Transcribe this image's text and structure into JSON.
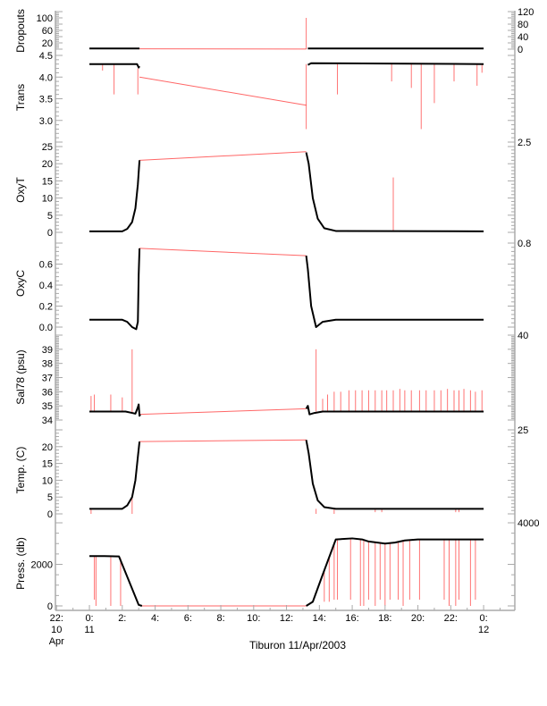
{
  "chart_data": {
    "type": "line",
    "title": "Tiburon 11/Apr/2003",
    "xlabel": "Tiburon 11/Apr/2003",
    "xlim": [
      -2.07,
      25.9
    ],
    "x_ticks": [
      {
        "value": -2,
        "lines": [
          "22:",
          "10",
          "Apr"
        ]
      },
      {
        "value": 0,
        "lines": [
          "0:",
          "11"
        ]
      },
      {
        "value": 2,
        "lines": [
          "2:"
        ]
      },
      {
        "value": 4,
        "lines": [
          "4:"
        ]
      },
      {
        "value": 6,
        "lines": [
          "6:"
        ]
      },
      {
        "value": 8,
        "lines": [
          "8:"
        ]
      },
      {
        "value": 10,
        "lines": [
          "10:"
        ]
      },
      {
        "value": 12,
        "lines": [
          "12:"
        ]
      },
      {
        "value": 14,
        "lines": [
          "14:"
        ]
      },
      {
        "value": 16,
        "lines": [
          "16:"
        ]
      },
      {
        "value": 18,
        "lines": [
          "18:"
        ]
      },
      {
        "value": 20,
        "lines": [
          "20:"
        ]
      },
      {
        "value": 22,
        "lines": [
          "22:"
        ]
      },
      {
        "value": 24,
        "lines": [
          "0:",
          "12"
        ]
      }
    ],
    "colors": {
      "data": "#000000",
      "gap": "#ff0000",
      "axis": "#aaaaaa"
    },
    "panels": [
      {
        "id": "dropouts",
        "ylabel": "Dropouts",
        "ylim": [
          0,
          120
        ],
        "yticks": [
          "0",
          "20",
          "40",
          "60",
          "80",
          "100",
          "120"
        ],
        "ytick_values": [
          0,
          20,
          40,
          60,
          80,
          100,
          120
        ],
        "black": [
          [
            [
              0,
              2
            ],
            [
              3.05,
              2
            ]
          ],
          [
            [
              13.3,
              2
            ],
            [
              24,
              2
            ]
          ]
        ],
        "red": [
          [
            [
              3.05,
              1
            ],
            [
              13.2,
              0.5
            ]
          ]
        ],
        "spikes": [
          [
            13.2,
            0,
            100
          ]
        ]
      },
      {
        "id": "trans",
        "ylabel": "Trans",
        "ylim": [
          2.5,
          4.5
        ],
        "yticks": [
          "2.5",
          "3.0",
          "3.5",
          "4.0",
          "4.5"
        ],
        "ytick_values": [
          2.5,
          3.0,
          3.5,
          4.0,
          4.5
        ],
        "black": [
          [
            [
              0,
              4.3
            ],
            [
              2.9,
              4.3
            ],
            [
              3.0,
              4.22
            ],
            [
              3.05,
              4.25
            ]
          ],
          [
            [
              13.3,
              4.28
            ],
            [
              13.5,
              4.32
            ],
            [
              24,
              4.3
            ]
          ]
        ],
        "red": [
          [
            [
              3.05,
              4.0
            ],
            [
              13.2,
              3.35
            ]
          ]
        ],
        "spikes": [
          [
            0.8,
            4.3,
            4.15
          ],
          [
            1.5,
            4.3,
            3.6
          ],
          [
            2.95,
            4.2,
            3.6
          ],
          [
            13.2,
            4.3,
            2.8
          ],
          [
            15.1,
            4.3,
            3.6
          ],
          [
            18.4,
            4.3,
            3.9
          ],
          [
            19.6,
            4.3,
            3.75
          ],
          [
            20.2,
            4.3,
            2.8
          ],
          [
            21.0,
            4.3,
            3.4
          ],
          [
            22.2,
            4.3,
            3.9
          ],
          [
            23.6,
            4.3,
            3.8
          ],
          [
            23.9,
            4.3,
            4.1
          ]
        ]
      },
      {
        "id": "oxyt",
        "ylabel": "OxyT",
        "ylim": [
          0,
          25
        ],
        "yticks": [
          "0",
          "5",
          "10",
          "15",
          "20",
          "25"
        ],
        "ytick_values": [
          0,
          5,
          10,
          15,
          20,
          25
        ],
        "black": [
          [
            [
              0,
              0.3
            ],
            [
              2.0,
              0.3
            ],
            [
              2.3,
              1
            ],
            [
              2.6,
              3
            ],
            [
              2.8,
              7
            ],
            [
              2.95,
              14
            ],
            [
              3.05,
              21
            ]
          ],
          [
            [
              13.2,
              23.3
            ],
            [
              13.35,
              20
            ],
            [
              13.6,
              10
            ],
            [
              13.9,
              4
            ],
            [
              14.3,
              1.2
            ],
            [
              15,
              0.4
            ],
            [
              24,
              0.3
            ]
          ]
        ],
        "red": [
          [
            [
              3.05,
              21
            ],
            [
              13.2,
              23.5
            ]
          ]
        ],
        "spikes": [
          [
            18.5,
            0.3,
            16
          ]
        ]
      },
      {
        "id": "oxyc",
        "ylabel": "OxyC",
        "ylim": [
          0,
          0.8
        ],
        "yticks": [
          "0.0",
          "0.2",
          "0.4",
          "0.6",
          "0.8"
        ],
        "ytick_values": [
          0,
          0.2,
          0.4,
          0.6,
          0.8
        ],
        "black": [
          [
            [
              0,
              0.07
            ],
            [
              2.0,
              0.07
            ],
            [
              2.3,
              0.05
            ],
            [
              2.6,
              0.0
            ],
            [
              2.85,
              -0.02
            ],
            [
              2.95,
              0.05
            ],
            [
              3.0,
              0.5
            ],
            [
              3.05,
              0.75
            ]
          ],
          [
            [
              13.2,
              0.68
            ],
            [
              13.3,
              0.55
            ],
            [
              13.5,
              0.2
            ],
            [
              13.8,
              0.0
            ],
            [
              14.2,
              0.05
            ],
            [
              15,
              0.07
            ],
            [
              24,
              0.07
            ]
          ]
        ],
        "red": [
          [
            [
              3.05,
              0.75
            ],
            [
              13.2,
              0.68
            ]
          ]
        ],
        "spikes": []
      },
      {
        "id": "sal",
        "ylabel": "Sal78 (psu)",
        "ylim": [
          34,
          40
        ],
        "yticks": [
          "34",
          "35",
          "36",
          "37",
          "38",
          "39",
          "40"
        ],
        "ytick_values": [
          34,
          35,
          36,
          37,
          38,
          39,
          40
        ],
        "black": [
          [
            [
              0,
              34.6
            ],
            [
              2.2,
              34.6
            ],
            [
              2.6,
              34.5
            ],
            [
              2.8,
              34.45
            ],
            [
              2.95,
              34.9
            ],
            [
              3.0,
              35.1
            ],
            [
              3.05,
              34.3
            ],
            [
              3.1,
              34.4
            ]
          ],
          [
            [
              13.2,
              34.8
            ],
            [
              13.3,
              35.0
            ],
            [
              13.4,
              34.4
            ],
            [
              13.7,
              34.5
            ],
            [
              14.2,
              34.6
            ],
            [
              24,
              34.6
            ]
          ]
        ],
        "red": [
          [
            [
              3.1,
              34.4
            ],
            [
              13.2,
              34.8
            ]
          ]
        ],
        "spikes": [
          [
            0.1,
            34.6,
            35.7
          ],
          [
            0.3,
            34.6,
            35.8
          ],
          [
            1.3,
            34.6,
            35.8
          ],
          [
            2.0,
            34.6,
            35.6
          ],
          [
            2.6,
            34.5,
            39.0
          ],
          [
            13.8,
            34.6,
            39.0
          ],
          [
            14.2,
            34.6,
            35.5
          ],
          [
            14.5,
            34.6,
            35.8
          ],
          [
            14.9,
            34.6,
            36.0
          ],
          [
            15.3,
            34.6,
            36.0
          ],
          [
            15.8,
            34.6,
            36.1
          ],
          [
            16.2,
            34.6,
            36.1
          ],
          [
            16.6,
            34.6,
            36.1
          ],
          [
            17.0,
            34.6,
            36.1
          ],
          [
            17.4,
            34.6,
            36.1
          ],
          [
            17.8,
            34.6,
            36.1
          ],
          [
            18.1,
            34.6,
            36.1
          ],
          [
            18.5,
            34.6,
            36.1
          ],
          [
            18.9,
            34.6,
            36.2
          ],
          [
            19.2,
            34.6,
            36.1
          ],
          [
            19.6,
            34.6,
            36.1
          ],
          [
            20.1,
            34.6,
            36.1
          ],
          [
            20.5,
            34.6,
            36.1
          ],
          [
            21.0,
            34.6,
            36.1
          ],
          [
            21.4,
            34.6,
            36.1
          ],
          [
            21.8,
            34.6,
            36.2
          ],
          [
            22.2,
            34.6,
            36.1
          ],
          [
            22.5,
            34.6,
            36.1
          ],
          [
            22.8,
            34.6,
            36.2
          ],
          [
            23.2,
            34.6,
            36.1
          ],
          [
            23.5,
            34.6,
            36.0
          ],
          [
            23.9,
            34.6,
            36.1
          ]
        ]
      },
      {
        "id": "temp",
        "ylabel": "Temp. (C)",
        "ylim": [
          0,
          25
        ],
        "yticks": [
          "0",
          "5",
          "10",
          "15",
          "20",
          "25"
        ],
        "ytick_values": [
          0,
          5,
          10,
          15,
          20,
          25
        ],
        "black": [
          [
            [
              0,
              1.5
            ],
            [
              2.0,
              1.5
            ],
            [
              2.3,
              2.5
            ],
            [
              2.6,
              5
            ],
            [
              2.8,
              10
            ],
            [
              2.95,
              17
            ],
            [
              3.05,
              21.5
            ]
          ],
          [
            [
              13.2,
              22
            ],
            [
              13.35,
              18
            ],
            [
              13.6,
              9
            ],
            [
              13.9,
              4
            ],
            [
              14.3,
              2
            ],
            [
              15,
              1.5
            ],
            [
              24,
              1.5
            ]
          ]
        ],
        "red": [
          [
            [
              3.05,
              21.5
            ],
            [
              13.2,
              22
            ]
          ]
        ],
        "spikes": [
          [
            0.1,
            1.5,
            0
          ],
          [
            2.6,
            5,
            0
          ],
          [
            13.8,
            1.5,
            0
          ],
          [
            14.9,
            1.5,
            0
          ],
          [
            17.4,
            1.5,
            0.5
          ],
          [
            17.8,
            1.5,
            0.5
          ],
          [
            22.3,
            1.5,
            0.5
          ],
          [
            22.5,
            1.5,
            0.5
          ]
        ]
      },
      {
        "id": "press",
        "ylabel": "Press. (db)",
        "ylim": [
          0,
          4000
        ],
        "yticks": [
          "0",
          "2000",
          "4000"
        ],
        "ytick_values": [
          0,
          2000,
          4000
        ],
        "black": [
          [
            [
              0,
              2400
            ],
            [
              0.9,
              2400
            ],
            [
              1.8,
              2380
            ],
            [
              3.0,
              50
            ],
            [
              3.2,
              0
            ]
          ],
          [
            [
              13.2,
              0
            ],
            [
              13.6,
              200
            ],
            [
              14.2,
              1500
            ],
            [
              15.0,
              3200
            ],
            [
              16.0,
              3250
            ],
            [
              16.6,
              3200
            ],
            [
              17.0,
              3100
            ],
            [
              18.0,
              3000
            ],
            [
              18.6,
              3050
            ],
            [
              19.2,
              3150
            ],
            [
              20.0,
              3200
            ],
            [
              21.0,
              3200
            ],
            [
              24,
              3200
            ]
          ]
        ],
        "red": [
          [
            [
              3.2,
              0
            ],
            [
              13.2,
              0
            ]
          ]
        ],
        "spikes": [
          [
            0.3,
            2400,
            300
          ],
          [
            0.4,
            2400,
            0
          ],
          [
            1.3,
            2380,
            0
          ],
          [
            1.9,
            2300,
            0
          ],
          [
            14.3,
            1700,
            200
          ],
          [
            14.6,
            2400,
            200
          ],
          [
            14.9,
            3000,
            300
          ],
          [
            15.1,
            3200,
            300
          ],
          [
            15.9,
            3250,
            300
          ],
          [
            16.5,
            3200,
            0
          ],
          [
            16.7,
            3150,
            0
          ],
          [
            17.0,
            3100,
            300
          ],
          [
            17.4,
            3050,
            0
          ],
          [
            17.7,
            3000,
            300
          ],
          [
            18.0,
            3000,
            0
          ],
          [
            18.3,
            3000,
            300
          ],
          [
            18.8,
            3100,
            300
          ],
          [
            19.1,
            3150,
            0
          ],
          [
            19.5,
            3200,
            300
          ],
          [
            20.1,
            3200,
            300
          ],
          [
            21.6,
            3200,
            300
          ],
          [
            21.9,
            3200,
            0
          ],
          [
            22.3,
            3200,
            0
          ],
          [
            22.5,
            3200,
            300
          ],
          [
            23.2,
            3200,
            0
          ],
          [
            23.5,
            3200,
            300
          ]
        ]
      }
    ]
  }
}
